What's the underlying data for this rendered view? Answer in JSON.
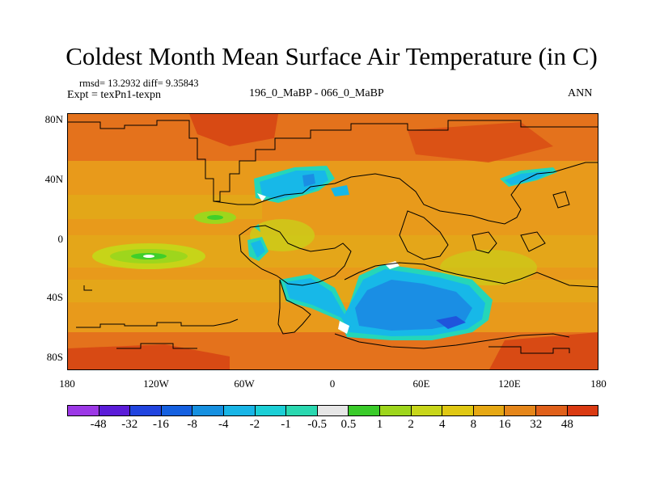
{
  "title": "Coldest Month Mean Surface Air Temperature (in C)",
  "stats": "rmsd= 13.2932 diff= 9.35843",
  "expt": "Expt = texPn1-texpn",
  "difference_label": "196_0_MaBP - 066_0_MaBP",
  "season": "ANN",
  "lat_ticks": [
    "80N",
    "40N",
    "0",
    "40S",
    "80S"
  ],
  "lon_ticks": [
    "180",
    "120W",
    "60W",
    "0",
    "60E",
    "120E",
    "180"
  ],
  "colorbar": {
    "labels": [
      "-48",
      "-32",
      "-16",
      "-8",
      "-4",
      "-2",
      "-1",
      "-0.5",
      "0.5",
      "1",
      "2",
      "4",
      "8",
      "16",
      "32",
      "48"
    ],
    "colors": [
      "#9c38e6",
      "#5b1cd8",
      "#2144df",
      "#1560e0",
      "#1690e0",
      "#19b5e6",
      "#1ccfd6",
      "#2ad8b0",
      "#e6e6e6",
      "#3acb2a",
      "#9ed61c",
      "#c8d61a",
      "#e0c813",
      "#e6a814",
      "#e5861a",
      "#e0601a",
      "#da3a12"
    ]
  },
  "map_colors": {
    "background": "#e89a1b",
    "warm": "#e4721c",
    "hot": "#d84a14",
    "mild": "#e0b117",
    "cool": "#c7d418",
    "cooler": "#9ed61c",
    "green": "#3fcf2a",
    "teal": "#25d6b8",
    "cyan": "#17b8e8",
    "blue": "#1a8ee4",
    "deepblue": "#1f55dc",
    "white": "#ffffff"
  }
}
